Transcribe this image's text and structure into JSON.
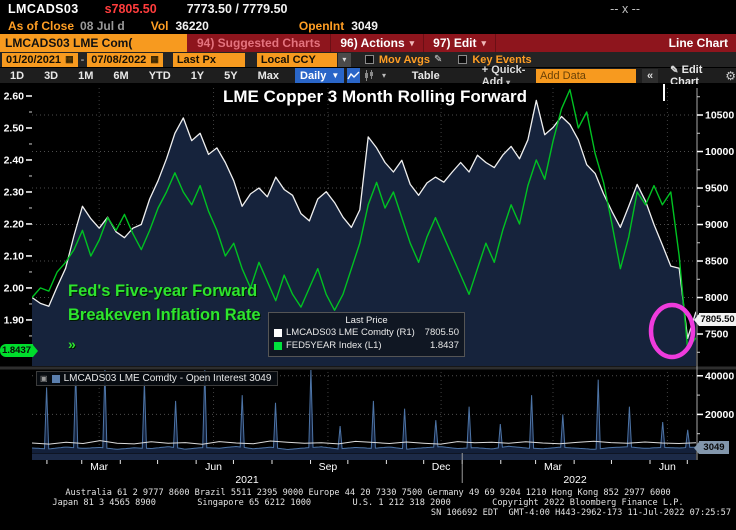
{
  "header": {
    "ticker": "LMCADS03",
    "last_price": "s7805.50",
    "bid_ask": "7773.50 / 7779.50",
    "size": "-- x --",
    "as_of_label": "As of Close",
    "as_of_date": "08 Jul d",
    "vol_label": "Vol",
    "vol_value": "36220",
    "oi_label": "OpenInt",
    "oi_value": "3049"
  },
  "menubar": {
    "ticker_box": "LMCADS03 LME Com(",
    "suggested": "94) Suggested Charts",
    "actions": "96) Actions",
    "edit": "97) Edit",
    "right_label": "Line Chart"
  },
  "controls": {
    "date_from": "01/20/2021",
    "date_to": "07/08/2022",
    "px_type": "Last Px",
    "currency": "Local CCY",
    "mov_avgs": "Mov Avgs",
    "key_events": "Key Events",
    "periods": [
      "1D",
      "3D",
      "1M",
      "6M",
      "YTD",
      "1Y",
      "5Y",
      "Max"
    ],
    "frequency": "Daily",
    "table_label": "Table",
    "quick_add": "+ Quick-Add",
    "add_data_placeholder": "Add Data",
    "collapse": "«",
    "edit_chart": "Edit Chart"
  },
  "icons": {
    "calendar": "▦",
    "pencil": "✎",
    "gear": "⚙",
    "caret_down": "▾",
    "caret_down_big": "▼",
    "collapse_box": "▣"
  },
  "annotation": {
    "line1": "Fed's Five-year Forward",
    "line2": "Breakeven Inflation Rate",
    "marker": "»"
  },
  "legend": {
    "title": "Last Price",
    "rows": [
      {
        "swatch": "#ffffff",
        "label": "LMCADS03 LME Comdty  (R1)",
        "value": "7805.50"
      },
      {
        "swatch": "#00e33d",
        "label": "FED5YEAR Index  (L1)",
        "value": "1.8437"
      }
    ]
  },
  "callouts": {
    "left_last": "1.8437",
    "right_last": "7805.50",
    "oi_last": "3049"
  },
  "chart_data": {
    "type": "line",
    "title": "LME Copper 3 Month Rolling Forward",
    "x_range": [
      "01/20/2021",
      "07/08/2022"
    ],
    "x_tick_labels": [
      "Mar",
      "Jun",
      "Sep",
      "Dec",
      "Mar",
      "Jun"
    ],
    "x_year_labels": [
      "2021",
      "2022"
    ],
    "grid": "dotted",
    "main_panel": {
      "left_axis": {
        "name": "FED5YEAR Index (L1)",
        "ticks": [
          2.6,
          2.5,
          2.4,
          2.3,
          2.2,
          2.1,
          2.0,
          1.9,
          1.8
        ],
        "lim": [
          1.756,
          2.625
        ]
      },
      "right_axis": {
        "name": "LMCADS03 LME Comdty (R1)",
        "ticks": [
          10500,
          10000,
          9500,
          9000,
          8500,
          8000,
          7500
        ],
        "lim": [
          7062,
          10870
        ]
      },
      "series": [
        {
          "name": "LMCADS03 LME Comdty",
          "axis": "R1",
          "color": "#f0f0f0",
          "fill": "#16233c",
          "last": 7805.5,
          "values": [
            8000,
            7920,
            7880,
            8150,
            8400,
            8850,
            9250,
            9080,
            8950,
            9100,
            8900,
            8820,
            8950,
            9000,
            9350,
            9600,
            9900,
            10250,
            10460,
            10150,
            10250,
            9960,
            10050,
            9850,
            9600,
            9250,
            9420,
            9500,
            9380,
            9650,
            9480,
            9400,
            9150,
            9050,
            9350,
            9450,
            9300,
            9100,
            8960,
            9200,
            10200,
            10050,
            9850,
            9720,
            9880,
            9550,
            9400,
            9570,
            9650,
            9580,
            9720,
            9850,
            9720,
            9950,
            9850,
            9780,
            9950,
            10070,
            9900,
            10160,
            10700,
            10230,
            10330,
            10480,
            10370,
            10160,
            9820,
            9700,
            9420,
            9180,
            8960,
            9250,
            9550,
            9320,
            9000,
            8720,
            8430,
            8400,
            7440,
            7805.5
          ]
        },
        {
          "name": "FED5YEAR Index",
          "axis": "L1",
          "color": "#00c222",
          "last": 1.8437,
          "values": [
            1.97,
            2.0,
            1.99,
            2.05,
            2.08,
            2.12,
            2.18,
            2.1,
            2.15,
            2.22,
            2.18,
            2.23,
            2.17,
            2.12,
            2.18,
            2.25,
            2.3,
            2.36,
            2.3,
            2.26,
            2.32,
            2.24,
            2.18,
            2.1,
            2.14,
            2.06,
            2.0,
            2.08,
            2.02,
            1.96,
            2.04,
            1.98,
            1.94,
            2.0,
            2.06,
            1.98,
            1.93,
            1.98,
            2.06,
            2.14,
            2.26,
            2.33,
            2.25,
            2.3,
            2.22,
            2.14,
            2.08,
            2.16,
            2.22,
            2.16,
            2.1,
            2.04,
            1.98,
            2.06,
            2.14,
            2.08,
            2.18,
            2.26,
            2.2,
            2.32,
            2.4,
            2.34,
            2.46,
            2.56,
            2.62,
            2.5,
            2.55,
            2.42,
            2.33,
            2.2,
            2.06,
            2.16,
            2.3,
            2.26,
            2.32,
            2.26,
            2.3,
            2.1,
            1.81,
            1.8437
          ]
        }
      ]
    },
    "lower_panel": {
      "label": "LMCADS03 LME Comdty - Open Interest 3049",
      "last_value": 3049,
      "ylim": [
        0,
        43000
      ],
      "yticks": [
        40000,
        20000
      ],
      "spike_color": "#4d74a6",
      "line_color": "#dcdcdc",
      "baseline": [
        2600,
        2100,
        3100,
        2400,
        2900,
        1900,
        2700,
        2300,
        3300,
        2000,
        2800,
        2500,
        3400,
        2200,
        3000,
        1800,
        2600,
        3200,
        2100,
        2900,
        2400,
        3100,
        2000,
        2700,
        3300,
        2300,
        2800,
        2100,
        3500,
        2600,
        2200,
        3000,
        2500,
        1900,
        2800,
        3200,
        2400,
        2900,
        2600,
        3049
      ],
      "white_line": [
        5200,
        4600,
        5600,
        4900,
        6400,
        5100,
        4700,
        5800,
        5000,
        5400,
        4500,
        5900,
        5200,
        4800,
        6200,
        5600,
        5000,
        5300,
        4700,
        6000,
        5500,
        4900,
        5700,
        5100,
        4600,
        5900,
        5300,
        5600,
        5000,
        5800,
        5200,
        4800,
        5500,
        6100,
        5400,
        5000,
        5700,
        5200,
        4900,
        5300
      ],
      "spikes": [
        {
          "x": 0.023,
          "v": 34000
        },
        {
          "x": 0.066,
          "v": 42000
        },
        {
          "x": 0.111,
          "v": 43000
        },
        {
          "x": 0.169,
          "v": 37000
        },
        {
          "x": 0.217,
          "v": 27000
        },
        {
          "x": 0.261,
          "v": 43000
        },
        {
          "x": 0.318,
          "v": 30000
        },
        {
          "x": 0.367,
          "v": 26000
        },
        {
          "x": 0.42,
          "v": 43500
        },
        {
          "x": 0.465,
          "v": 14000
        },
        {
          "x": 0.513,
          "v": 27000
        },
        {
          "x": 0.562,
          "v": 23000
        },
        {
          "x": 0.608,
          "v": 17000
        },
        {
          "x": 0.657,
          "v": 24000
        },
        {
          "x": 0.705,
          "v": 15000
        },
        {
          "x": 0.753,
          "v": 30000
        },
        {
          "x": 0.8,
          "v": 20000
        },
        {
          "x": 0.852,
          "v": 38000
        },
        {
          "x": 0.9,
          "v": 24000
        },
        {
          "x": 0.949,
          "v": 16000
        },
        {
          "x": 0.988,
          "v": 12000
        }
      ]
    },
    "highlight_circle_color": "#ef3bdd"
  },
  "footer": {
    "line1": "Australia 61 2 9777 8600 Brazil 5511 2395 9000 Europe 44 20 7330 7500 Germany 49 69 9204 1210 Hong Kong 852 2977 6000",
    "line2": "Japan 81 3 4565 8900        Singapore 65 6212 1000        U.S. 1 212 318 2000        Copyright 2022 Bloomberg Finance L.P.",
    "line3": "SN 106692 EDT  GMT-4:00 H443-2962-173 11-Jul-2022 07:25:57"
  }
}
